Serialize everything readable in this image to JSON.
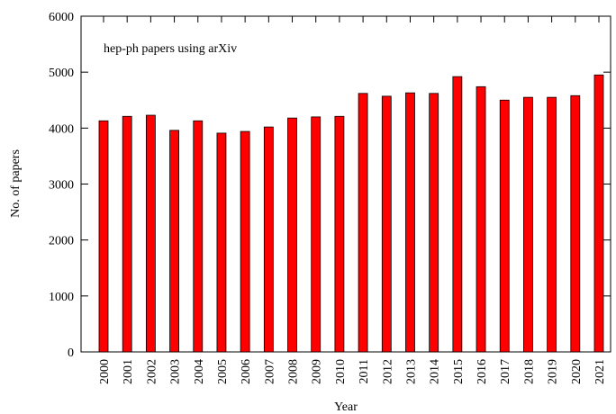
{
  "chart_data": {
    "type": "bar",
    "annotation": "hep-ph papers using arXiv",
    "xlabel": "Year",
    "ylabel": "No. of papers",
    "categories": [
      "2000",
      "2001",
      "2002",
      "2003",
      "2004",
      "2005",
      "2006",
      "2007",
      "2008",
      "2009",
      "2010",
      "2011",
      "2012",
      "2013",
      "2014",
      "2015",
      "2016",
      "2017",
      "2018",
      "2019",
      "2020",
      "2021"
    ],
    "values": [
      4130,
      4210,
      4230,
      3960,
      4130,
      3910,
      3940,
      4020,
      4180,
      4200,
      4210,
      4620,
      4570,
      4630,
      4620,
      4920,
      4740,
      4500,
      4550,
      4550,
      4580,
      4950
    ],
    "color": "#ff0000",
    "ylim": [
      0,
      6000
    ],
    "yticks": [
      0,
      1000,
      2000,
      3000,
      4000,
      5000,
      6000
    ],
    "grid": false
  }
}
